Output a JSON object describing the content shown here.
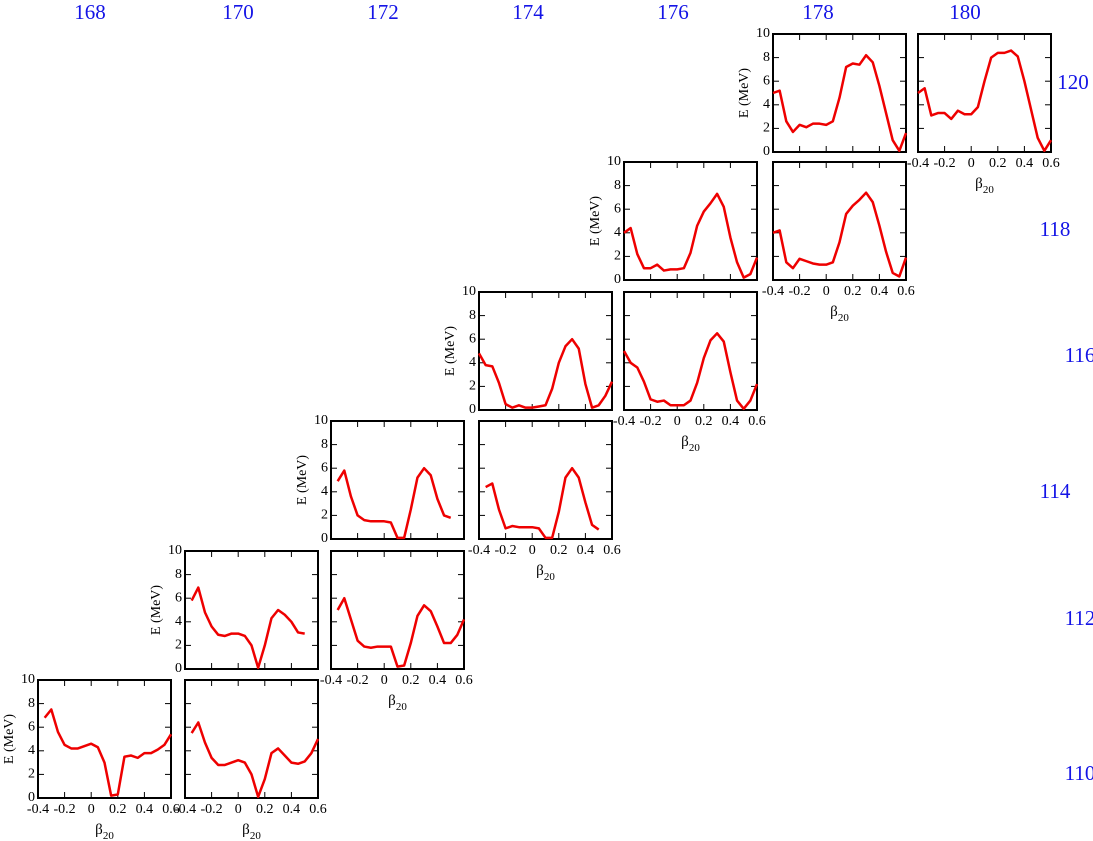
{
  "column_labels": [
    "168",
    "170",
    "172",
    "174",
    "176",
    "178",
    "180"
  ],
  "row_labels": [
    "120",
    "118",
    "116",
    "114",
    "112",
    "110"
  ],
  "chart_data": [
    {
      "type": "line",
      "color": "#ee0000",
      "xlim": [
        -0.4,
        0.6
      ],
      "ylim": [
        0,
        10
      ],
      "xticks": [
        -0.4,
        -0.2,
        0,
        0.2,
        0.4,
        0.6
      ],
      "yticks": [
        0,
        2,
        4,
        6,
        8,
        10
      ],
      "ylabel": "E (MeV)",
      "xlabel": "β",
      "xlabel_subscript": "20",
      "x": [
        -0.35,
        -0.3,
        -0.25,
        -0.2,
        -0.15,
        -0.1,
        -0.05,
        0,
        0.05,
        0.1,
        0.15,
        0.2,
        0.25,
        0.3,
        0.35,
        0.4,
        0.45,
        0.5,
        0.55,
        0.6
      ],
      "values": [
        6.8,
        7.5,
        5.6,
        4.5,
        4.2,
        4.2,
        4.4,
        4.6,
        4.3,
        3.0,
        0.2,
        0.3,
        3.5,
        3.6,
        3.4,
        3.8,
        3.8,
        4.1,
        4.5,
        5.4
      ]
    },
    {
      "type": "line",
      "color": "#ee0000",
      "xlim": [
        -0.4,
        0.6
      ],
      "ylim": [
        0,
        10
      ],
      "xticks": [
        -0.4,
        -0.2,
        0,
        0.2,
        0.4,
        0.6
      ],
      "yticks": [
        0,
        2,
        4,
        6,
        8,
        10
      ],
      "xlabel": "β",
      "xlabel_subscript": "20",
      "x": [
        -0.35,
        -0.3,
        -0.25,
        -0.2,
        -0.15,
        -0.1,
        -0.05,
        0,
        0.05,
        0.1,
        0.15,
        0.2,
        0.25,
        0.3,
        0.35,
        0.4,
        0.45,
        0.5,
        0.55,
        0.6
      ],
      "values": [
        5.5,
        6.4,
        4.7,
        3.4,
        2.8,
        2.8,
        3.0,
        3.2,
        3.0,
        2.0,
        0.1,
        1.6,
        3.8,
        4.2,
        3.6,
        3.0,
        2.9,
        3.1,
        3.8,
        5.0
      ]
    },
    {
      "type": "line",
      "color": "#ee0000",
      "xlim": [
        -0.4,
        0.6
      ],
      "ylim": [
        0,
        10
      ],
      "xticks": [
        -0.4,
        -0.2,
        0,
        0.2,
        0.4,
        0.6
      ],
      "yticks": [
        0,
        2,
        4,
        6,
        8,
        10
      ],
      "ylabel": "E (MeV)",
      "x": [
        -0.35,
        -0.3,
        -0.25,
        -0.2,
        -0.15,
        -0.1,
        -0.05,
        0,
        0.05,
        0.1,
        0.15,
        0.2,
        0.25,
        0.3,
        0.35,
        0.4,
        0.45,
        0.5
      ],
      "values": [
        5.8,
        6.9,
        4.8,
        3.6,
        2.9,
        2.8,
        3.0,
        3.0,
        2.8,
        2.0,
        0.1,
        2.0,
        4.3,
        5.0,
        4.6,
        4.0,
        3.1,
        3.0
      ]
    },
    {
      "type": "line",
      "color": "#ee0000",
      "xlim": [
        -0.4,
        0.6
      ],
      "ylim": [
        0,
        10
      ],
      "xticks": [
        -0.4,
        -0.2,
        0,
        0.2,
        0.4,
        0.6
      ],
      "yticks": [
        0,
        2,
        4,
        6,
        8,
        10
      ],
      "xlabel": "β",
      "xlabel_subscript": "20",
      "x": [
        -0.35,
        -0.3,
        -0.25,
        -0.2,
        -0.15,
        -0.1,
        -0.05,
        0,
        0.05,
        0.1,
        0.15,
        0.2,
        0.25,
        0.3,
        0.35,
        0.4,
        0.45,
        0.5,
        0.55,
        0.6
      ],
      "values": [
        5.0,
        6.0,
        4.2,
        2.4,
        1.9,
        1.8,
        1.9,
        1.9,
        1.9,
        0.2,
        0.3,
        2.2,
        4.5,
        5.4,
        4.9,
        3.6,
        2.2,
        2.2,
        2.9,
        4.2
      ]
    },
    {
      "type": "line",
      "color": "#ee0000",
      "xlim": [
        -0.4,
        0.6
      ],
      "ylim": [
        0,
        10
      ],
      "xticks": [
        -0.4,
        -0.2,
        0,
        0.2,
        0.4,
        0.6
      ],
      "yticks": [
        0,
        2,
        4,
        6,
        8,
        10
      ],
      "ylabel": "E (MeV)",
      "x": [
        -0.35,
        -0.3,
        -0.25,
        -0.2,
        -0.15,
        -0.1,
        -0.05,
        0,
        0.05,
        0.1,
        0.15,
        0.2,
        0.25,
        0.3,
        0.35,
        0.4,
        0.45,
        0.5
      ],
      "values": [
        4.9,
        5.8,
        3.6,
        2.0,
        1.6,
        1.5,
        1.5,
        1.5,
        1.4,
        0.1,
        0.1,
        2.5,
        5.2,
        6.0,
        5.4,
        3.4,
        2.0,
        1.8
      ]
    },
    {
      "type": "line",
      "color": "#ee0000",
      "xlim": [
        -0.4,
        0.6
      ],
      "ylim": [
        0,
        10
      ],
      "xticks": [
        -0.4,
        -0.2,
        0,
        0.2,
        0.4,
        0.6
      ],
      "yticks": [
        0,
        2,
        4,
        6,
        8,
        10
      ],
      "xlabel": "β",
      "xlabel_subscript": "20",
      "x": [
        -0.35,
        -0.3,
        -0.25,
        -0.2,
        -0.15,
        -0.1,
        -0.05,
        0,
        0.05,
        0.1,
        0.15,
        0.2,
        0.25,
        0.3,
        0.35,
        0.4,
        0.45,
        0.5
      ],
      "values": [
        4.4,
        4.7,
        2.5,
        0.9,
        1.1,
        1.0,
        1.0,
        1.0,
        0.9,
        0.1,
        0.1,
        2.3,
        5.2,
        6.0,
        5.2,
        3.1,
        1.2,
        0.8
      ]
    },
    {
      "type": "line",
      "color": "#ee0000",
      "xlim": [
        -0.4,
        0.6
      ],
      "ylim": [
        0,
        10
      ],
      "xticks": [
        -0.4,
        -0.2,
        0,
        0.2,
        0.4,
        0.6
      ],
      "yticks": [
        0,
        2,
        4,
        6,
        8,
        10
      ],
      "ylabel": "E (MeV)",
      "x": [
        -0.4,
        -0.35,
        -0.3,
        -0.25,
        -0.2,
        -0.15,
        -0.1,
        -0.05,
        0,
        0.05,
        0.1,
        0.15,
        0.2,
        0.25,
        0.3,
        0.35,
        0.4,
        0.45,
        0.5,
        0.55,
        0.6
      ],
      "values": [
        4.8,
        3.8,
        3.7,
        2.3,
        0.5,
        0.2,
        0.4,
        0.2,
        0.2,
        0.3,
        0.4,
        1.8,
        4.0,
        5.4,
        6.0,
        5.2,
        2.2,
        0.2,
        0.4,
        1.2,
        2.4
      ]
    },
    {
      "type": "line",
      "color": "#ee0000",
      "xlim": [
        -0.4,
        0.6
      ],
      "ylim": [
        0,
        10
      ],
      "xticks": [
        -0.4,
        -0.2,
        0,
        0.2,
        0.4,
        0.6
      ],
      "yticks": [
        0,
        2,
        4,
        6,
        8,
        10
      ],
      "xlabel": "β",
      "xlabel_subscript": "20",
      "x": [
        -0.4,
        -0.35,
        -0.3,
        -0.25,
        -0.2,
        -0.15,
        -0.1,
        -0.05,
        0,
        0.05,
        0.1,
        0.15,
        0.2,
        0.25,
        0.3,
        0.35,
        0.4,
        0.45,
        0.5,
        0.55,
        0.6
      ],
      "values": [
        5.0,
        4.0,
        3.6,
        2.4,
        0.9,
        0.7,
        0.8,
        0.4,
        0.4,
        0.4,
        0.8,
        2.3,
        4.4,
        5.9,
        6.5,
        5.8,
        3.2,
        0.8,
        0.1,
        0.8,
        2.2
      ]
    },
    {
      "type": "line",
      "color": "#ee0000",
      "xlim": [
        -0.4,
        0.6
      ],
      "ylim": [
        0,
        10
      ],
      "xticks": [
        -0.4,
        -0.2,
        0,
        0.2,
        0.4,
        0.6
      ],
      "yticks": [
        0,
        2,
        4,
        6,
        8,
        10
      ],
      "ylabel": "E (MeV)",
      "x": [
        -0.4,
        -0.35,
        -0.3,
        -0.25,
        -0.2,
        -0.15,
        -0.1,
        -0.05,
        0,
        0.05,
        0.1,
        0.15,
        0.2,
        0.25,
        0.3,
        0.35,
        0.4,
        0.45,
        0.5,
        0.55,
        0.6
      ],
      "values": [
        4.0,
        4.4,
        2.2,
        1.0,
        1.0,
        1.3,
        0.8,
        0.9,
        0.9,
        1.0,
        2.3,
        4.6,
        5.8,
        6.5,
        7.3,
        6.2,
        3.6,
        1.5,
        0.2,
        0.5,
        1.9
      ]
    },
    {
      "type": "line",
      "color": "#ee0000",
      "xlim": [
        -0.4,
        0.6
      ],
      "ylim": [
        0,
        10
      ],
      "xticks": [
        -0.4,
        -0.2,
        0,
        0.2,
        0.4,
        0.6
      ],
      "yticks": [
        0,
        2,
        4,
        6,
        8,
        10
      ],
      "xlabel": "β",
      "xlabel_subscript": "20",
      "x": [
        -0.4,
        -0.35,
        -0.3,
        -0.25,
        -0.2,
        -0.15,
        -0.1,
        -0.05,
        0,
        0.05,
        0.1,
        0.15,
        0.2,
        0.25,
        0.3,
        0.35,
        0.4,
        0.45,
        0.5,
        0.55,
        0.6
      ],
      "values": [
        4.0,
        4.2,
        1.5,
        1.0,
        1.8,
        1.6,
        1.4,
        1.3,
        1.3,
        1.5,
        3.2,
        5.6,
        6.3,
        6.8,
        7.4,
        6.6,
        4.6,
        2.4,
        0.6,
        0.3,
        1.9
      ]
    },
    {
      "type": "line",
      "color": "#ee0000",
      "xlim": [
        -0.4,
        0.6
      ],
      "ylim": [
        0,
        10
      ],
      "xticks": [
        -0.4,
        -0.2,
        0,
        0.2,
        0.4,
        0.6
      ],
      "yticks": [
        0,
        2,
        4,
        6,
        8,
        10
      ],
      "ylabel": "E (MeV)",
      "x": [
        -0.4,
        -0.35,
        -0.3,
        -0.25,
        -0.2,
        -0.15,
        -0.1,
        -0.05,
        0,
        0.05,
        0.1,
        0.15,
        0.2,
        0.25,
        0.3,
        0.35,
        0.4,
        0.45,
        0.5,
        0.55,
        0.6
      ],
      "values": [
        5.0,
        5.2,
        2.6,
        1.7,
        2.3,
        2.1,
        2.4,
        2.4,
        2.3,
        2.6,
        4.6,
        7.2,
        7.5,
        7.4,
        8.2,
        7.6,
        5.6,
        3.3,
        1.0,
        0.1,
        1.6
      ]
    },
    {
      "type": "line",
      "color": "#ee0000",
      "xlim": [
        -0.4,
        0.6
      ],
      "ylim": [
        0,
        10
      ],
      "xticks": [
        -0.4,
        -0.2,
        0,
        0.2,
        0.4,
        0.6
      ],
      "yticks": [
        0,
        2,
        4,
        6,
        8,
        10
      ],
      "xlabel": "β",
      "xlabel_subscript": "20",
      "x": [
        -0.4,
        -0.35,
        -0.3,
        -0.25,
        -0.2,
        -0.15,
        -0.1,
        -0.05,
        0,
        0.05,
        0.1,
        0.15,
        0.2,
        0.25,
        0.3,
        0.35,
        0.4,
        0.45,
        0.5,
        0.55,
        0.6
      ],
      "values": [
        5.0,
        5.4,
        3.1,
        3.3,
        3.3,
        2.8,
        3.5,
        3.2,
        3.2,
        3.8,
        6.0,
        8.0,
        8.4,
        8.4,
        8.6,
        8.1,
        6.0,
        3.6,
        1.2,
        0.1,
        1.0
      ]
    }
  ]
}
